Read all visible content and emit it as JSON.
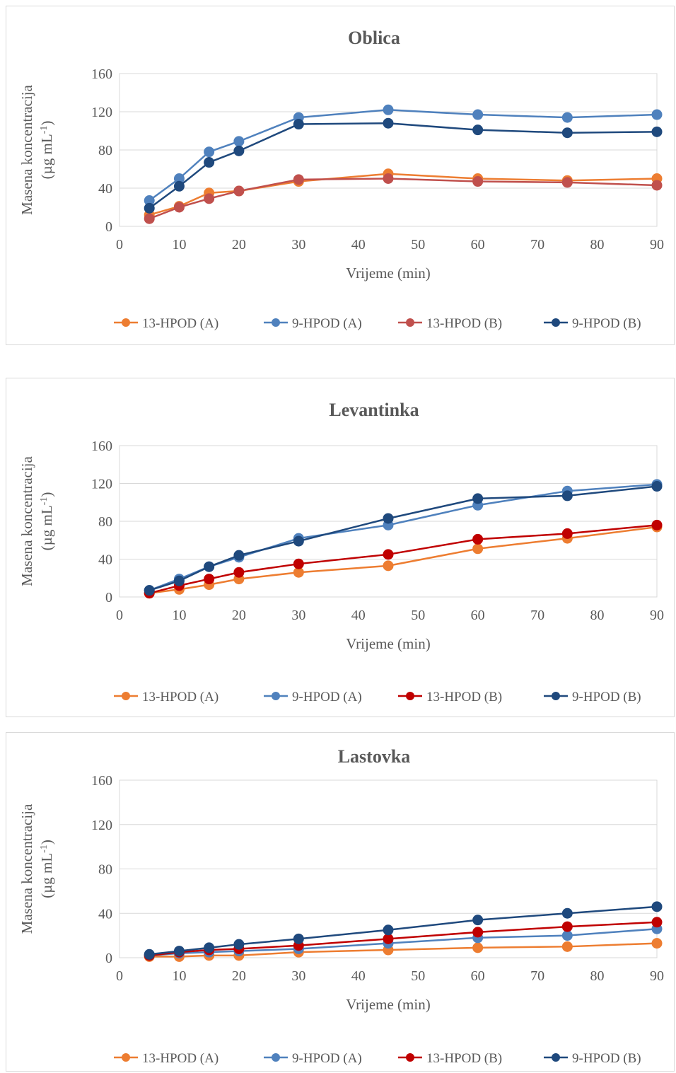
{
  "chart_data": [
    {
      "type": "line",
      "title": "Oblica",
      "xlabel": "Vrijeme (min)",
      "ylabel_line1": "Masena koncentracija",
      "ylabel_line2_prefix": "(µg mL",
      "ylabel_superscript": "-1",
      "ylabel_line2_suffix": ")",
      "xlim": [
        0,
        90
      ],
      "ylim": [
        0,
        160
      ],
      "xticks": [
        0,
        10,
        20,
        30,
        40,
        50,
        60,
        70,
        80,
        90
      ],
      "yticks": [
        0,
        40,
        80,
        120,
        160
      ],
      "x": [
        5,
        10,
        15,
        20,
        30,
        45,
        60,
        75,
        90
      ],
      "grid": true,
      "legend_position": "bottom",
      "series": [
        {
          "name": "13-HPOD (A)",
          "color": "#ED7D31",
          "values": [
            12,
            21,
            35,
            37,
            47,
            55,
            50,
            48,
            50
          ]
        },
        {
          "name": "9-HPOD (A)",
          "color": "#4F81BD",
          "values": [
            27,
            50,
            78,
            89,
            114,
            122,
            117,
            114,
            117
          ]
        },
        {
          "name": "13-HPOD (B)",
          "color": "#C0504D",
          "values": [
            8,
            20,
            29,
            37,
            49,
            50,
            47,
            46,
            43
          ]
        },
        {
          "name": "9-HPOD (B)",
          "color": "#1F497D",
          "values": [
            19,
            42,
            67,
            79,
            107,
            108,
            101,
            98,
            99
          ]
        }
      ]
    },
    {
      "type": "line",
      "title": "Levantinka",
      "xlabel": "Vrijeme (min)",
      "ylabel_line1": "Masena koncentracija",
      "ylabel_line2_prefix": "(µg mL",
      "ylabel_superscript": "-1",
      "ylabel_line2_suffix": ")",
      "xlim": [
        0,
        90
      ],
      "ylim": [
        0,
        160
      ],
      "xticks": [
        0,
        10,
        20,
        30,
        40,
        50,
        60,
        70,
        80,
        90
      ],
      "yticks": [
        0,
        40,
        80,
        120,
        160
      ],
      "x": [
        5,
        10,
        15,
        20,
        30,
        45,
        60,
        75,
        90
      ],
      "grid": true,
      "legend_position": "bottom",
      "series": [
        {
          "name": "13-HPOD (A)",
          "color": "#ED7D31",
          "values": [
            4,
            8,
            13,
            19,
            26,
            33,
            51,
            62,
            74
          ]
        },
        {
          "name": "9-HPOD (A)",
          "color": "#4F81BD",
          "values": [
            7,
            19,
            32,
            42,
            62,
            76,
            97,
            112,
            119
          ]
        },
        {
          "name": "13-HPOD (B)",
          "color": "#C00000",
          "values": [
            4,
            12,
            19,
            26,
            35,
            45,
            61,
            67,
            76
          ]
        },
        {
          "name": "9-HPOD (B)",
          "color": "#1F497D",
          "values": [
            7,
            17,
            32,
            44,
            59,
            83,
            104,
            107,
            117
          ]
        }
      ]
    },
    {
      "type": "line",
      "title": "Lastovka",
      "xlabel": "Vrijeme (min)",
      "ylabel_line1": "Masena koncentracija",
      "ylabel_line2_prefix": "(µg mL",
      "ylabel_superscript": "-1",
      "ylabel_line2_suffix": ")",
      "xlim": [
        0,
        90
      ],
      "ylim": [
        0,
        160
      ],
      "xticks": [
        0,
        10,
        20,
        30,
        40,
        50,
        60,
        70,
        80,
        90
      ],
      "yticks": [
        0,
        40,
        80,
        120,
        160
      ],
      "x": [
        5,
        10,
        15,
        20,
        30,
        45,
        60,
        75,
        90
      ],
      "grid": true,
      "legend_position": "bottom",
      "series": [
        {
          "name": "13-HPOD (A)",
          "color": "#ED7D31",
          "values": [
            1,
            1,
            2,
            2,
            5,
            7,
            9,
            10,
            13
          ]
        },
        {
          "name": "9-HPOD (A)",
          "color": "#4F81BD",
          "values": [
            2,
            4,
            5,
            6,
            8,
            13,
            18,
            20,
            26
          ]
        },
        {
          "name": "13-HPOD (B)",
          "color": "#C00000",
          "values": [
            2,
            5,
            7,
            8,
            11,
            17,
            23,
            28,
            32
          ]
        },
        {
          "name": "9-HPOD (B)",
          "color": "#1F497D",
          "values": [
            3,
            6,
            9,
            12,
            17,
            25,
            34,
            40,
            46
          ]
        }
      ]
    }
  ]
}
